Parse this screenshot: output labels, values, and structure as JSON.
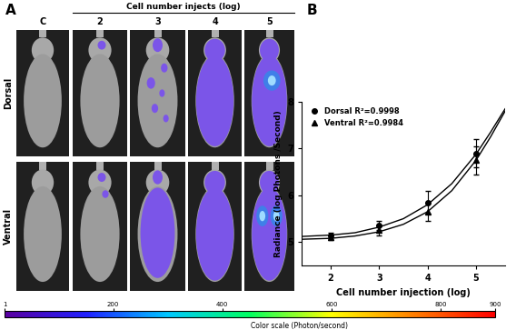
{
  "panel_a": {
    "label": "A",
    "header": "Cell number injects (log)",
    "columns": [
      "C",
      "2",
      "3",
      "4",
      "5"
    ],
    "rows": [
      "Dorsal",
      "Ventral"
    ],
    "color_scale": {
      "label": "Color scale (Photon/second)",
      "range": [
        1,
        900
      ],
      "ticks": [
        1,
        200,
        400,
        600,
        800,
        900
      ]
    }
  },
  "chart_data": {
    "type": "line",
    "panel_label": "B",
    "x_label": "Cell number injection (log)",
    "y_label": "Radiance (log Photons /Second)",
    "xlim": [
      1.4,
      5.6
    ],
    "xticks": [
      2,
      3,
      4,
      5
    ],
    "ylim": [
      4.5,
      8
    ],
    "yticks": [
      5,
      6,
      7,
      8
    ],
    "legend": "upper left",
    "series": [
      {
        "name": "Dorsal R²=0.9998",
        "type": "scatter",
        "marker": "circle",
        "color": "#000000",
        "x": [
          2,
          3,
          4,
          5
        ],
        "values": [
          5.15,
          5.35,
          5.85,
          6.9
        ],
        "errors": [
          0.05,
          0.1,
          0.25,
          0.3
        ]
      },
      {
        "name": "Ventral R²=0.9984",
        "type": "scatter",
        "marker": "triangle",
        "color": "#000000",
        "x": [
          2,
          3,
          4,
          5
        ],
        "values": [
          5.1,
          5.25,
          5.65,
          6.75
        ],
        "errors": [
          0.05,
          0.1,
          0.2,
          0.3
        ]
      },
      {
        "type": "line",
        "color": "#000000",
        "x": [
          1.4,
          2,
          2.5,
          3,
          3.5,
          4,
          4.5,
          5,
          5.3,
          5.6
        ],
        "values": [
          5.12,
          5.15,
          5.2,
          5.32,
          5.5,
          5.8,
          6.25,
          6.88,
          7.35,
          7.85
        ]
      },
      {
        "type": "line",
        "color": "#000000",
        "x": [
          1.4,
          2,
          2.5,
          3,
          3.5,
          4,
          4.5,
          5,
          5.3,
          5.6
        ],
        "values": [
          5.06,
          5.08,
          5.13,
          5.22,
          5.38,
          5.65,
          6.1,
          6.75,
          7.25,
          7.8
        ]
      }
    ]
  }
}
